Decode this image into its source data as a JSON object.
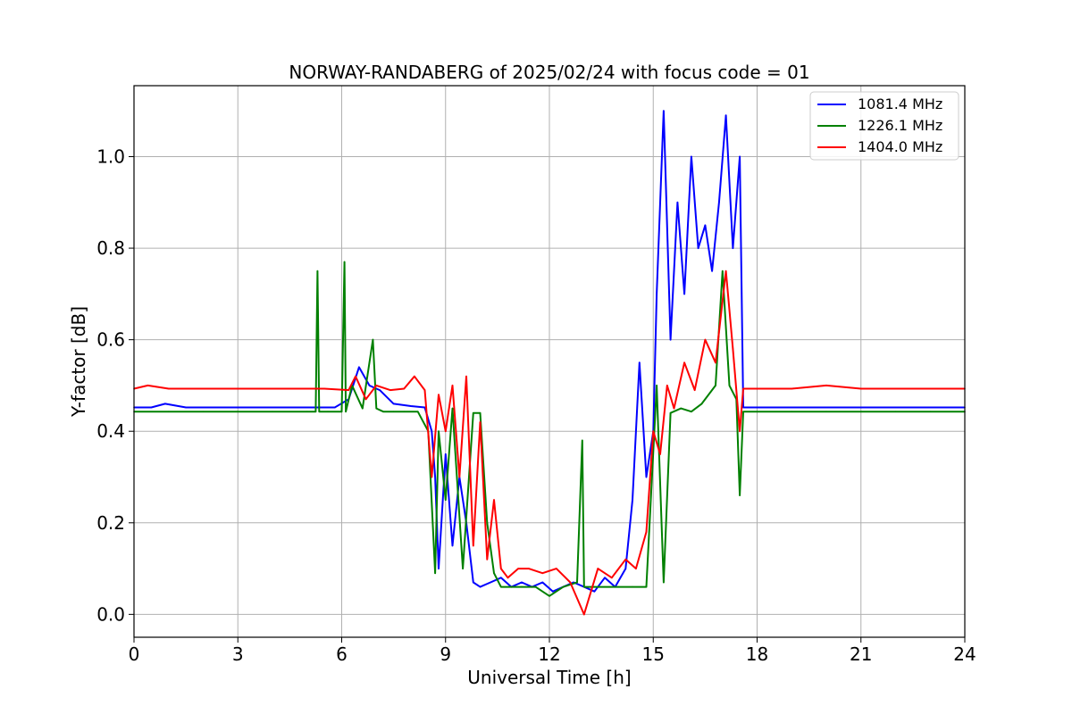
{
  "chart_data": {
    "type": "line",
    "title": "NORWAY-RANDABERG of 2025/02/24 with focus code = 01",
    "xlabel": "Universal Time [h]",
    "ylabel": "Y-factor [dB]",
    "xlim": [
      0,
      24
    ],
    "ylim": [
      -0.05,
      1.155
    ],
    "xticks": [
      0,
      3,
      6,
      9,
      12,
      15,
      18,
      21,
      24
    ],
    "xtick_labels": [
      "0",
      "3",
      "6",
      "9",
      "12",
      "15",
      "18",
      "21",
      "24"
    ],
    "yticks": [
      0.0,
      0.2,
      0.4,
      0.6,
      0.8,
      1.0
    ],
    "ytick_labels": [
      "0.0",
      "0.2",
      "0.4",
      "0.6",
      "0.8",
      "1.0"
    ],
    "grid": true,
    "legend_position": "top-right",
    "series": [
      {
        "name": "1081.4 MHz",
        "color": "#0000ff",
        "x": [
          0.0,
          0.5,
          0.9,
          1.5,
          2.5,
          3.5,
          4.5,
          5.3,
          5.8,
          6.2,
          6.5,
          6.8,
          7.1,
          7.5,
          8.0,
          8.4,
          8.6,
          8.7,
          8.8,
          9.0,
          9.2,
          9.4,
          9.6,
          9.8,
          10.0,
          10.3,
          10.6,
          10.9,
          11.2,
          11.5,
          11.8,
          12.1,
          12.4,
          12.7,
          13.0,
          13.3,
          13.6,
          13.9,
          14.2,
          14.4,
          14.6,
          14.8,
          15.0,
          15.1,
          15.3,
          15.5,
          15.7,
          15.9,
          16.1,
          16.3,
          16.5,
          16.7,
          16.9,
          17.1,
          17.3,
          17.5,
          17.6,
          18.0,
          19.0,
          20.0,
          21.0,
          22.0,
          23.0,
          24.0
        ],
        "y": [
          0.452,
          0.452,
          0.46,
          0.452,
          0.452,
          0.452,
          0.452,
          0.452,
          0.452,
          0.47,
          0.54,
          0.5,
          0.49,
          0.46,
          0.455,
          0.452,
          0.4,
          0.3,
          0.1,
          0.35,
          0.15,
          0.3,
          0.2,
          0.07,
          0.06,
          0.07,
          0.08,
          0.06,
          0.07,
          0.06,
          0.07,
          0.05,
          0.06,
          0.07,
          0.06,
          0.05,
          0.08,
          0.06,
          0.1,
          0.25,
          0.55,
          0.3,
          0.4,
          0.7,
          1.1,
          0.6,
          0.9,
          0.7,
          1.0,
          0.8,
          0.85,
          0.75,
          0.9,
          1.09,
          0.8,
          1.0,
          0.452,
          0.452,
          0.452,
          0.452,
          0.452,
          0.452,
          0.452,
          0.452
        ]
      },
      {
        "name": "1226.1 MHz",
        "color": "#008000",
        "x": [
          0.0,
          1.0,
          2.0,
          3.0,
          4.0,
          5.0,
          5.25,
          5.3,
          5.35,
          5.6,
          6.0,
          6.08,
          6.12,
          6.3,
          6.6,
          6.9,
          7.0,
          7.2,
          7.5,
          7.8,
          8.2,
          8.5,
          8.7,
          8.8,
          9.0,
          9.2,
          9.5,
          9.8,
          10.0,
          10.2,
          10.4,
          10.6,
          10.9,
          11.2,
          11.6,
          12.0,
          12.4,
          12.8,
          12.95,
          13.0,
          13.3,
          13.6,
          14.0,
          14.4,
          14.8,
          15.1,
          15.3,
          15.5,
          15.8,
          16.1,
          16.4,
          16.8,
          17.0,
          17.2,
          17.4,
          17.5,
          17.6,
          18.0,
          19.0,
          20.0,
          21.0,
          22.0,
          23.0,
          24.0
        ],
        "y": [
          0.443,
          0.443,
          0.443,
          0.443,
          0.443,
          0.443,
          0.443,
          0.75,
          0.443,
          0.443,
          0.443,
          0.77,
          0.443,
          0.5,
          0.45,
          0.6,
          0.45,
          0.443,
          0.443,
          0.443,
          0.443,
          0.4,
          0.09,
          0.4,
          0.25,
          0.45,
          0.1,
          0.44,
          0.44,
          0.2,
          0.09,
          0.06,
          0.06,
          0.06,
          0.06,
          0.04,
          0.06,
          0.07,
          0.38,
          0.06,
          0.06,
          0.06,
          0.06,
          0.06,
          0.06,
          0.5,
          0.07,
          0.44,
          0.45,
          0.443,
          0.46,
          0.5,
          0.75,
          0.5,
          0.47,
          0.26,
          0.443,
          0.443,
          0.443,
          0.443,
          0.443,
          0.443,
          0.443,
          0.443
        ]
      },
      {
        "name": "1404.0 MHz",
        "color": "#ff0000",
        "x": [
          0.0,
          0.4,
          1.0,
          1.5,
          2.0,
          3.0,
          4.0,
          5.0,
          5.5,
          6.2,
          6.4,
          6.7,
          7.0,
          7.4,
          7.8,
          8.1,
          8.4,
          8.6,
          8.8,
          9.0,
          9.2,
          9.4,
          9.6,
          9.8,
          10.0,
          10.2,
          10.4,
          10.6,
          10.8,
          11.1,
          11.4,
          11.8,
          12.2,
          12.6,
          13.0,
          13.4,
          13.8,
          14.2,
          14.5,
          14.8,
          15.0,
          15.2,
          15.4,
          15.6,
          15.9,
          16.2,
          16.5,
          16.8,
          17.1,
          17.3,
          17.5,
          17.6,
          18.0,
          19.0,
          20.0,
          21.0,
          22.0,
          23.0,
          24.0
        ],
        "y": [
          0.493,
          0.5,
          0.493,
          0.493,
          0.493,
          0.493,
          0.493,
          0.493,
          0.493,
          0.49,
          0.52,
          0.47,
          0.5,
          0.49,
          0.493,
          0.52,
          0.49,
          0.3,
          0.48,
          0.4,
          0.5,
          0.3,
          0.52,
          0.15,
          0.42,
          0.12,
          0.25,
          0.1,
          0.08,
          0.1,
          0.1,
          0.09,
          0.1,
          0.07,
          0.0,
          0.1,
          0.08,
          0.12,
          0.1,
          0.18,
          0.4,
          0.35,
          0.5,
          0.45,
          0.55,
          0.49,
          0.6,
          0.55,
          0.75,
          0.58,
          0.4,
          0.493,
          0.493,
          0.493,
          0.5,
          0.493,
          0.493,
          0.493,
          0.493
        ]
      }
    ]
  }
}
